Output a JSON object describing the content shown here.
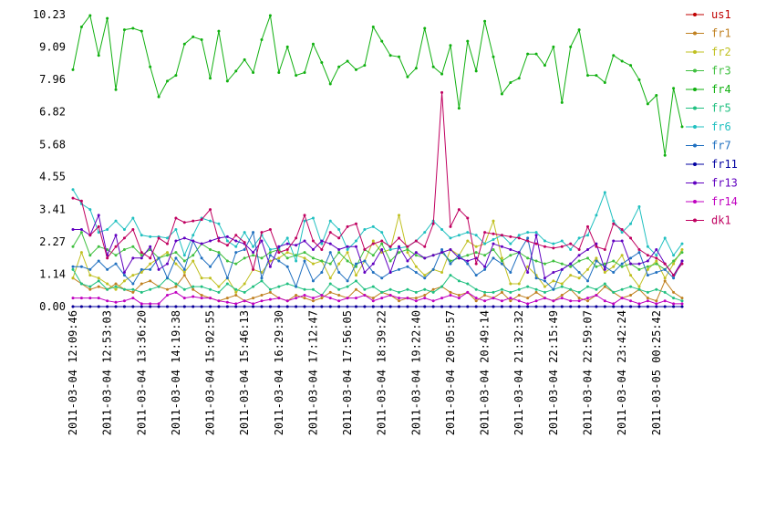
{
  "chart_data": {
    "type": "line",
    "categories": [
      "2011-03-04 12:09:46",
      null,
      null,
      null,
      "2011-03-04 12:53:03",
      null,
      null,
      null,
      "2011-03-04 13:36:20",
      null,
      null,
      null,
      "2011-03-04 14:19:38",
      null,
      null,
      null,
      "2011-03-04 15:02:55",
      null,
      null,
      null,
      "2011-03-04 15:46:13",
      null,
      null,
      null,
      "2011-03-04 16:29:30",
      null,
      null,
      null,
      "2011-03-04 17:12:47",
      null,
      null,
      null,
      "2011-03-04 17:56:05",
      null,
      null,
      null,
      "2011-03-04 18:39:22",
      null,
      null,
      null,
      "2011-03-04 19:22:40",
      null,
      null,
      null,
      "2011-03-04 20:05:57",
      null,
      null,
      null,
      "2011-03-04 20:49:14",
      null,
      null,
      null,
      "2011-03-04 21:32:32",
      null,
      null,
      null,
      "2011-03-04 22:15:49",
      null,
      null,
      null,
      "2011-03-04 22:59:07",
      null,
      null,
      null,
      "2011-03-04 23:42:24",
      null,
      null,
      null,
      "2011-03-05 00:25:42",
      null,
      null,
      null
    ],
    "ylim": [
      0,
      10.23
    ],
    "yticks": [
      {
        "value": 0,
        "label": "0.00"
      },
      1.14,
      2.27,
      3.41,
      4.55,
      5.68,
      6.82,
      7.96,
      9.09,
      10.23
    ],
    "series": [
      {
        "name": "us1",
        "color": "#c00000",
        "values": [
          0,
          0,
          0,
          0,
          0,
          0,
          0,
          0,
          0,
          0,
          0,
          0,
          0,
          0,
          0,
          0,
          0,
          0,
          0,
          0,
          0,
          0,
          0,
          0,
          0,
          0,
          0,
          0,
          0,
          0,
          0,
          0,
          0,
          0,
          0,
          0,
          0,
          0,
          0,
          0,
          0,
          0,
          0,
          0,
          0,
          0,
          0,
          0,
          0,
          0,
          0,
          0,
          0,
          0,
          0,
          0,
          0,
          0,
          0,
          0,
          0,
          0,
          0,
          0,
          0,
          0,
          0,
          0,
          0,
          0,
          0,
          0
        ]
      },
      {
        "name": "fr1",
        "color": "#c08020",
        "values": [
          1.0,
          0.8,
          0.6,
          0.7,
          0.6,
          0.8,
          0.6,
          0.5,
          0.8,
          0.9,
          0.7,
          0.6,
          0.7,
          1.1,
          0.6,
          0.4,
          0.3,
          0.2,
          0.3,
          0.4,
          0.2,
          0.3,
          0.4,
          0.5,
          0.3,
          0.2,
          0.4,
          0.3,
          0.2,
          0.3,
          0.5,
          0.4,
          0.3,
          0.6,
          0.4,
          0.3,
          0.5,
          0.4,
          0.2,
          0.3,
          0.3,
          0.4,
          0.6,
          0.7,
          0.5,
          0.4,
          0.5,
          0.2,
          0.4,
          0.3,
          0.5,
          0.2,
          0.4,
          0.3,
          0.5,
          0.3,
          0.2,
          0.4,
          0.6,
          0.3,
          0.2,
          0.4,
          0.7,
          0.5,
          0.3,
          0.4,
          0.6,
          0.3,
          0.2,
          0.9,
          0.5,
          0.3
        ]
      },
      {
        "name": "fr2",
        "color": "#c0c020",
        "values": [
          1.0,
          1.9,
          1.1,
          1.0,
          0.8,
          0.6,
          0.9,
          1.1,
          1.2,
          1.5,
          1.7,
          1.9,
          1.5,
          1.2,
          1.6,
          1.0,
          1.0,
          0.7,
          1.0,
          0.5,
          0.8,
          1.3,
          1.2,
          1.6,
          1.7,
          1.9,
          1.8,
          1.7,
          1.5,
          1.6,
          1.0,
          1.5,
          1.9,
          1.1,
          1.6,
          2.3,
          1.9,
          2.0,
          3.2,
          1.9,
          1.4,
          1.1,
          1.3,
          1.2,
          2.0,
          1.8,
          2.3,
          2.1,
          2.2,
          3.0,
          1.7,
          0.8,
          0.8,
          1.4,
          1.1,
          0.7,
          0.9,
          0.8,
          1.1,
          1.0,
          1.3,
          1.7,
          1.2,
          1.4,
          1.8,
          1.1,
          0.7,
          1.3,
          1.6,
          1.0,
          1.5,
          2.0
        ]
      },
      {
        "name": "fr3",
        "color": "#40c040",
        "values": [
          2.1,
          2.6,
          1.8,
          2.1,
          2.0,
          1.8,
          2.0,
          2.1,
          1.8,
          2.0,
          1.7,
          1.8,
          1.9,
          1.6,
          1.8,
          2.2,
          2.0,
          1.9,
          1.6,
          1.5,
          1.7,
          1.8,
          1.7,
          1.9,
          2.0,
          1.7,
          1.8,
          1.9,
          1.7,
          1.6,
          1.5,
          1.9,
          1.6,
          1.4,
          2.0,
          1.8,
          2.2,
          1.6,
          1.9,
          2.0,
          1.8,
          1.7,
          1.8,
          1.9,
          1.6,
          1.7,
          1.8,
          1.9,
          1.8,
          2.0,
          1.6,
          1.8,
          1.9,
          1.7,
          1.6,
          1.5,
          1.6,
          1.5,
          1.4,
          1.6,
          1.7,
          1.4,
          1.5,
          1.6,
          1.4,
          1.5,
          1.3,
          1.4,
          1.5,
          1.3,
          1.6,
          1.9
        ]
      },
      {
        "name": "fr4",
        "color": "#10b010",
        "values": [
          8.3,
          9.8,
          10.2,
          8.8,
          10.1,
          7.6,
          9.7,
          9.75,
          9.65,
          8.4,
          7.35,
          7.9,
          8.1,
          9.2,
          9.45,
          9.35,
          8.0,
          9.65,
          7.9,
          8.25,
          8.65,
          8.2,
          9.35,
          10.2,
          8.2,
          9.1,
          8.1,
          8.2,
          9.2,
          8.55,
          7.8,
          8.4,
          8.6,
          8.3,
          8.45,
          9.8,
          9.3,
          8.8,
          8.75,
          8.05,
          8.35,
          9.75,
          8.4,
          8.15,
          9.15,
          6.95,
          9.3,
          8.25,
          10.0,
          8.75,
          7.45,
          7.85,
          8.0,
          8.85,
          8.85,
          8.45,
          9.1,
          7.15,
          9.1,
          9.7,
          8.1,
          8.1,
          7.85,
          8.8,
          8.6,
          8.45,
          7.95,
          7.1,
          7.4,
          5.3,
          7.65,
          6.3
        ]
      },
      {
        "name": "fr5",
        "color": "#20c080",
        "values": [
          1.3,
          0.8,
          0.7,
          0.9,
          0.6,
          0.7,
          0.6,
          0.6,
          0.5,
          0.6,
          0.7,
          1.0,
          0.8,
          0.6,
          0.7,
          0.7,
          0.6,
          0.5,
          0.8,
          0.6,
          0.5,
          0.7,
          0.9,
          0.6,
          0.7,
          0.8,
          0.7,
          0.6,
          0.6,
          0.4,
          0.8,
          0.6,
          0.7,
          0.9,
          0.6,
          0.7,
          0.5,
          0.6,
          0.5,
          0.6,
          0.5,
          0.6,
          0.5,
          0.7,
          1.1,
          0.9,
          0.8,
          0.6,
          0.5,
          0.5,
          0.6,
          0.5,
          0.6,
          0.7,
          0.6,
          0.5,
          0.6,
          0.7,
          0.6,
          0.5,
          0.7,
          0.6,
          0.8,
          0.5,
          0.6,
          0.7,
          0.6,
          0.5,
          0.6,
          0.5,
          0.3,
          0.2
        ]
      },
      {
        "name": "fr6",
        "color": "#20c0c0",
        "values": [
          4.1,
          3.6,
          3.4,
          2.6,
          2.7,
          3.0,
          2.7,
          3.1,
          2.5,
          2.45,
          2.45,
          2.4,
          2.7,
          1.8,
          2.5,
          3.1,
          3.0,
          2.9,
          2.3,
          2.1,
          2.6,
          2.1,
          2.5,
          2.0,
          2.05,
          2.4,
          1.6,
          3.0,
          3.1,
          2.2,
          3.0,
          2.7,
          2.0,
          2.3,
          2.7,
          2.8,
          2.6,
          2.0,
          2.05,
          2.1,
          2.3,
          2.6,
          3.0,
          2.7,
          2.4,
          2.5,
          2.6,
          2.5,
          2.2,
          2.35,
          2.5,
          2.2,
          2.5,
          2.6,
          2.6,
          2.3,
          2.2,
          2.3,
          2.0,
          2.4,
          2.5,
          3.2,
          4.0,
          3.0,
          2.6,
          2.9,
          3.5,
          2.1,
          1.8,
          2.4,
          1.8,
          2.2
        ]
      },
      {
        "name": "fr7",
        "color": "#2070c0",
        "values": [
          1.4,
          1.4,
          1.3,
          1.6,
          1.3,
          1.5,
          1.1,
          0.8,
          1.3,
          1.3,
          1.7,
          1.0,
          1.7,
          1.3,
          2.3,
          1.7,
          1.4,
          1.8,
          1.0,
          1.9,
          2.0,
          2.6,
          1.0,
          1.8,
          1.6,
          1.4,
          0.7,
          1.6,
          0.9,
          1.2,
          1.9,
          1.2,
          0.9,
          1.5,
          1.6,
          1.2,
          1.0,
          1.2,
          1.3,
          1.4,
          1.2,
          1.0,
          1.3,
          2.0,
          1.5,
          1.8,
          1.5,
          1.1,
          1.3,
          1.7,
          1.5,
          1.2,
          1.9,
          2.4,
          1.0,
          0.9,
          0.6,
          1.3,
          1.5,
          1.2,
          0.9,
          1.6,
          1.4,
          1.2,
          1.5,
          1.7,
          1.9,
          1.1,
          1.2,
          1.3,
          1.0,
          1.6
        ]
      },
      {
        "name": "fr11",
        "color": "#0000a0",
        "values": [
          0,
          0,
          0,
          0,
          0,
          0,
          0,
          0,
          0,
          0,
          0,
          0,
          0,
          0,
          0,
          0,
          0,
          0,
          0,
          0,
          0,
          0,
          0,
          0,
          0,
          0,
          0,
          0,
          0,
          0,
          0,
          0,
          0,
          0,
          0,
          0,
          0,
          0,
          0,
          0,
          0,
          0,
          0,
          0,
          0,
          0,
          0,
          0,
          0,
          0,
          0,
          0,
          0,
          0,
          0,
          0,
          0,
          0,
          0,
          0,
          0,
          0,
          0,
          0,
          0,
          0,
          0,
          0,
          0,
          0,
          0,
          0
        ]
      },
      {
        "name": "fr13",
        "color": "#6000c0",
        "values": [
          2.7,
          2.7,
          2.5,
          3.2,
          1.8,
          2.5,
          1.2,
          1.7,
          1.7,
          2.1,
          1.3,
          1.5,
          2.3,
          2.4,
          2.3,
          2.2,
          2.3,
          2.4,
          2.45,
          2.3,
          2.2,
          1.9,
          2.3,
          1.4,
          2.1,
          2.2,
          2.15,
          2.3,
          2.0,
          2.3,
          2.2,
          2.0,
          2.1,
          2.1,
          1.2,
          1.5,
          2.0,
          1.2,
          2.1,
          1.6,
          1.9,
          1.7,
          1.8,
          1.9,
          2.0,
          1.7,
          1.6,
          1.7,
          1.4,
          2.2,
          2.1,
          2.0,
          1.9,
          1.2,
          2.5,
          1.0,
          1.2,
          1.3,
          1.5,
          1.8,
          2.0,
          2.2,
          1.3,
          2.3,
          2.3,
          1.5,
          1.5,
          1.6,
          2.0,
          1.5,
          1.1,
          1.6
        ]
      },
      {
        "name": "fr14",
        "color": "#c000c0",
        "values": [
          0.3,
          0.3,
          0.3,
          0.3,
          0.2,
          0.15,
          0.2,
          0.3,
          0.1,
          0.1,
          0.1,
          0.4,
          0.5,
          0.3,
          0.35,
          0.3,
          0.3,
          0.2,
          0.15,
          0.1,
          0.2,
          0.1,
          0.2,
          0.25,
          0.3,
          0.2,
          0.3,
          0.4,
          0.3,
          0.4,
          0.3,
          0.2,
          0.3,
          0.3,
          0.4,
          0.2,
          0.3,
          0.4,
          0.3,
          0.3,
          0.2,
          0.3,
          0.2,
          0.3,
          0.4,
          0.3,
          0.5,
          0.3,
          0.2,
          0.3,
          0.2,
          0.3,
          0.2,
          0.1,
          0.2,
          0.3,
          0.2,
          0.3,
          0.2,
          0.2,
          0.3,
          0.4,
          0.2,
          0.1,
          0.3,
          0.2,
          0.1,
          0.2,
          0.1,
          0.2,
          0.1,
          0.1
        ]
      },
      {
        "name": "dk1",
        "color": "#c00060",
        "values": [
          3.8,
          3.7,
          2.5,
          2.8,
          1.7,
          2.1,
          2.4,
          2.7,
          1.9,
          1.7,
          2.4,
          2.2,
          3.1,
          2.95,
          3.0,
          3.05,
          3.4,
          2.3,
          2.15,
          2.5,
          2.25,
          1.3,
          2.6,
          2.7,
          1.9,
          2.0,
          2.4,
          3.2,
          2.3,
          2.0,
          2.6,
          2.4,
          2.8,
          2.9,
          2.0,
          2.2,
          2.3,
          2.1,
          2.4,
          2.1,
          2.3,
          2.1,
          2.9,
          7.5,
          2.8,
          3.4,
          3.1,
          1.5,
          2.6,
          2.55,
          2.5,
          2.45,
          2.4,
          2.3,
          2.2,
          2.1,
          2.05,
          2.1,
          2.2,
          2.0,
          2.8,
          2.1,
          2.0,
          2.9,
          2.7,
          2.4,
          2.0,
          1.8,
          1.7,
          1.5,
          1.1,
          1.5
        ]
      }
    ]
  }
}
